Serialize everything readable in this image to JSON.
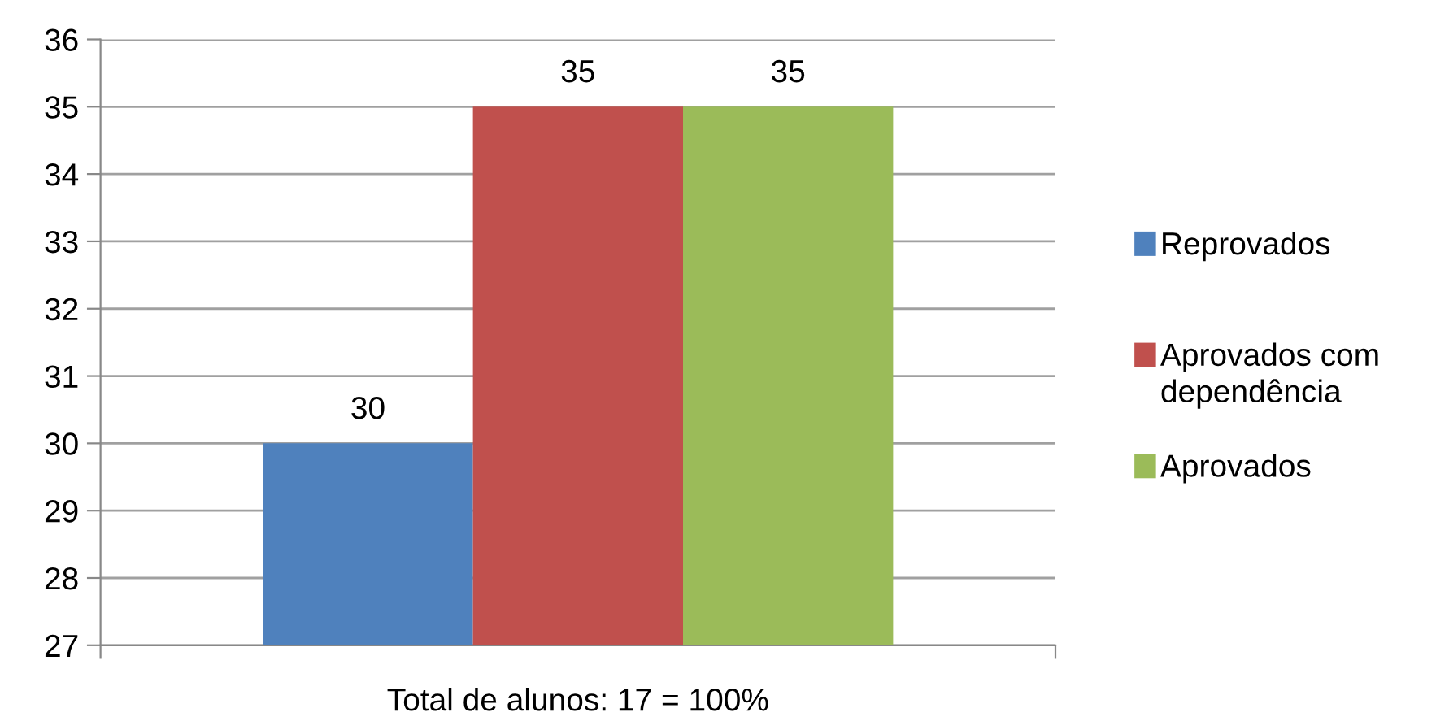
{
  "chart_data": {
    "type": "bar",
    "categories": [
      "Total de alunos: 17 = 100%"
    ],
    "series": [
      {
        "name": "Reprovados",
        "color": "#4f81bd",
        "values": [
          30
        ]
      },
      {
        "name": "Aprovados com dependência",
        "color": "#c0504d",
        "values": [
          35
        ]
      },
      {
        "name": "Aprovados",
        "color": "#9bbb59",
        "values": [
          35
        ]
      }
    ],
    "ylim": [
      27,
      36
    ],
    "yticks": [
      27,
      28,
      29,
      30,
      31,
      32,
      33,
      34,
      35,
      36
    ],
    "grid": "y",
    "legend": "right",
    "data_labels": true
  }
}
